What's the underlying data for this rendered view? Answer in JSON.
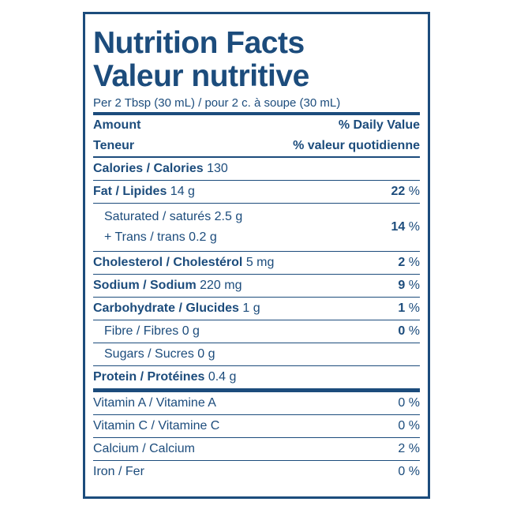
{
  "header": {
    "title": "Nutrition Facts",
    "title_fr": "Valeur nutritive",
    "serving": "Per 2 Tbsp (30 mL) / pour 2 c. à soupe (30 mL)",
    "amount": "Amount",
    "amount_fr": "Teneur",
    "daily_value": "% Daily Value",
    "daily_value_fr": "% valeur quotidienne"
  },
  "nutrients": [
    {
      "lines": [
        {
          "name": "Calories / Calories",
          "amount": "130"
        }
      ]
    },
    {
      "lines": [
        {
          "name": "Fat / Lipides",
          "amount": "14 g"
        }
      ],
      "dv": "22",
      "unit": "%"
    },
    {
      "lines": [
        {
          "name": "Saturated / saturés",
          "amount": "2.5 g"
        },
        {
          "name": "+ Trans / trans",
          "amount": "0.2 g"
        }
      ],
      "dv": "14",
      "unit": "%",
      "indent": true
    },
    {
      "lines": [
        {
          "name": "Cholesterol / Cholestérol",
          "amount": "5 mg"
        }
      ],
      "dv": "2",
      "unit": "%"
    },
    {
      "lines": [
        {
          "name": "Sodium / Sodium",
          "amount": "220 mg"
        }
      ],
      "dv": "9",
      "unit": "%"
    },
    {
      "lines": [
        {
          "name": "Carbohydrate / Glucides",
          "amount": "1 g"
        }
      ],
      "dv": "1",
      "unit": "%"
    },
    {
      "lines": [
        {
          "name": "Fibre / Fibres",
          "amount": "0 g"
        }
      ],
      "dv": "0",
      "unit": "%",
      "indent": true
    },
    {
      "lines": [
        {
          "name": "Sugars / Sucres",
          "amount": "0 g"
        }
      ],
      "indent": true
    },
    {
      "lines": [
        {
          "name": "Protein / Protéines",
          "amount": "0.4 g"
        }
      ]
    }
  ],
  "vitamins": [
    {
      "name": "Vitamin A / Vitamine A",
      "dv": "0",
      "unit": "%"
    },
    {
      "name": "Vitamin C / Vitamine C",
      "dv": "0",
      "unit": "%"
    },
    {
      "name": "Calcium / Calcium",
      "dv": "2",
      "unit": "%"
    },
    {
      "name": "Iron / Fer",
      "dv": "0",
      "unit": "%"
    }
  ]
}
